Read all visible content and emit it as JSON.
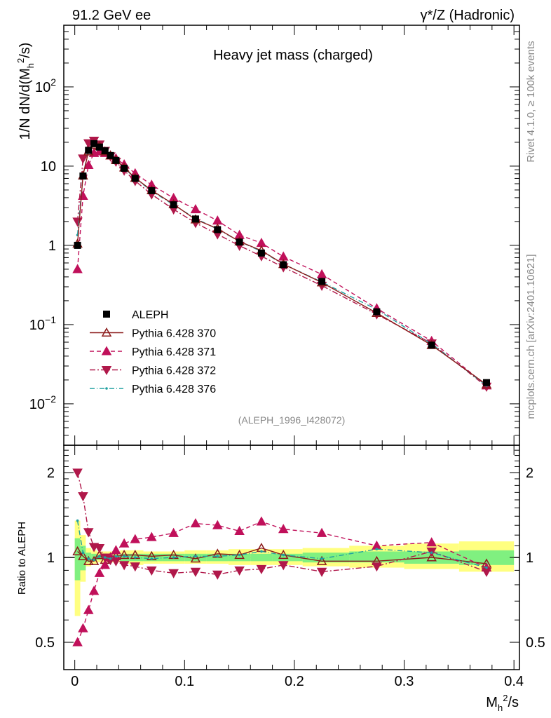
{
  "header": {
    "left": "91.2 GeV ee",
    "right": "γ*/Z (Hadronic)"
  },
  "side_labels": {
    "rivet": "Rivet 4.1.0, ≥ 100k events",
    "mcplots": "mcplots.cern.ch [arXiv:2401.10621]"
  },
  "colors": {
    "aleph": "#000000",
    "p370": "#8b1a1a",
    "p371": "#c0105a",
    "p372": "#b0184a",
    "p376": "#20a0a0",
    "band_outer": "#ffff80",
    "band_inner": "#80f080"
  },
  "chart_data": [
    {
      "type": "line",
      "title": "Heavy jet mass (charged)",
      "watermark": "(ALEPH_1996_I428072)",
      "xlabel": "M_h^2/s",
      "ylabel": "1/N  dN/d(M_h^2/s)",
      "yscale": "log",
      "xlim": [
        -0.01,
        0.405
      ],
      "ylim": [
        0.003,
        600
      ],
      "x_ticks": [
        0,
        0.1,
        0.2,
        0.3,
        0.4
      ],
      "y_ticks": [
        {
          "v": 0.01,
          "base": "10",
          "exp": "−2"
        },
        {
          "v": 0.1,
          "base": "10",
          "exp": "−1"
        },
        {
          "v": 1,
          "base": "1",
          "exp": ""
        },
        {
          "v": 10,
          "base": "10",
          "exp": ""
        },
        {
          "v": 100,
          "base": "10",
          "exp": "2"
        }
      ],
      "x": [
        0.0025,
        0.0075,
        0.0125,
        0.0175,
        0.0225,
        0.0275,
        0.0325,
        0.0375,
        0.045,
        0.055,
        0.07,
        0.09,
        0.11,
        0.13,
        0.15,
        0.17,
        0.19,
        0.225,
        0.275,
        0.325,
        0.375
      ],
      "series": [
        {
          "name": "ALEPH",
          "style": "data",
          "values": [
            1.0,
            7.5,
            15.8,
            19.2,
            17.4,
            15.6,
            13.6,
            11.8,
            9.4,
            7.0,
            4.9,
            3.25,
            2.15,
            1.58,
            1.1,
            0.8,
            0.57,
            0.35,
            0.145,
            0.055,
            0.0185
          ]
        },
        {
          "name": "Pythia 6.428 370",
          "style": "p370",
          "values": [
            1.05,
            7.6,
            15.3,
            18.6,
            17.8,
            15.3,
            13.6,
            11.9,
            9.6,
            7.1,
            4.95,
            3.3,
            2.12,
            1.63,
            1.12,
            0.86,
            0.58,
            0.34,
            0.14,
            0.055,
            0.0175
          ]
        },
        {
          "name": "Pythia 6.428 371",
          "style": "p371",
          "values": [
            0.5,
            4.2,
            10.3,
            14.6,
            15.3,
            14.6,
            13.6,
            12.5,
            10.5,
            8.1,
            5.8,
            3.95,
            2.85,
            2.05,
            1.35,
            1.07,
            0.72,
            0.43,
            0.16,
            0.062,
            0.017
          ]
        },
        {
          "name": "Pythia 6.428 372",
          "style": "p372",
          "values": [
            2.0,
            12.5,
            19.5,
            21.0,
            18.8,
            15.6,
            13.3,
            11.4,
            8.8,
            6.5,
            4.4,
            2.85,
            1.92,
            1.38,
            0.99,
            0.73,
            0.53,
            0.31,
            0.135,
            0.058,
            0.0165
          ]
        },
        {
          "name": "Pythia 6.428 376",
          "style": "p376",
          "values": [
            1.35,
            7.8,
            15.6,
            18.8,
            17.5,
            15.6,
            13.5,
            11.9,
            9.5,
            7.0,
            4.85,
            3.25,
            2.18,
            1.6,
            1.12,
            0.84,
            0.58,
            0.345,
            0.155,
            0.057,
            0.017
          ]
        }
      ]
    },
    {
      "type": "line",
      "ylabel": "Ratio to ALEPH",
      "yscale": "log",
      "ylim": [
        0.4,
        2.5
      ],
      "y_ticks": [
        {
          "v": 0.5,
          "label": "0.5"
        },
        {
          "v": 1,
          "label": "1"
        },
        {
          "v": 2,
          "label": "2"
        }
      ],
      "bands": {
        "outer": [
          [
            0.62,
            1.35
          ],
          [
            0.82,
            1.2
          ],
          [
            0.93,
            1.08
          ],
          [
            0.95,
            1.06
          ],
          [
            0.96,
            1.05
          ],
          [
            0.96,
            1.05
          ],
          [
            0.96,
            1.05
          ],
          [
            0.96,
            1.05
          ],
          [
            0.95,
            1.06
          ],
          [
            0.94,
            1.06
          ],
          [
            0.95,
            1.05
          ],
          [
            0.95,
            1.05
          ],
          [
            0.95,
            1.06
          ],
          [
            0.95,
            1.06
          ],
          [
            0.94,
            1.07
          ],
          [
            0.94,
            1.07
          ],
          [
            0.94,
            1.07
          ],
          [
            0.93,
            1.08
          ],
          [
            0.92,
            1.1
          ],
          [
            0.91,
            1.12
          ],
          [
            0.89,
            1.14
          ]
        ],
        "inner": [
          [
            0.83,
            1.17
          ],
          [
            0.9,
            1.1
          ],
          [
            0.96,
            1.04
          ],
          [
            0.97,
            1.03
          ],
          [
            0.98,
            1.02
          ],
          [
            0.98,
            1.02
          ],
          [
            0.98,
            1.02
          ],
          [
            0.98,
            1.02
          ],
          [
            0.97,
            1.03
          ],
          [
            0.97,
            1.03
          ],
          [
            0.97,
            1.03
          ],
          [
            0.97,
            1.03
          ],
          [
            0.97,
            1.03
          ],
          [
            0.97,
            1.03
          ],
          [
            0.97,
            1.03
          ],
          [
            0.97,
            1.03
          ],
          [
            0.97,
            1.03
          ],
          [
            0.96,
            1.04
          ],
          [
            0.96,
            1.05
          ],
          [
            0.95,
            1.05
          ],
          [
            0.94,
            1.06
          ]
        ]
      },
      "series": [
        {
          "name": "Pythia 6.428 370",
          "style": "p370",
          "values": [
            1.05,
            1.01,
            0.97,
            0.97,
            1.02,
            0.98,
            1.0,
            1.01,
            1.02,
            1.02,
            1.01,
            1.02,
            0.99,
            1.03,
            1.02,
            1.08,
            1.02,
            0.97,
            0.97,
            1.0,
            0.95
          ]
        },
        {
          "name": "Pythia 6.428 371",
          "style": "p371",
          "values": [
            0.5,
            0.56,
            0.65,
            0.76,
            0.88,
            0.94,
            1.0,
            1.06,
            1.12,
            1.16,
            1.18,
            1.22,
            1.32,
            1.3,
            1.24,
            1.34,
            1.26,
            1.22,
            1.1,
            1.13,
            0.92
          ]
        },
        {
          "name": "Pythia 6.428 372",
          "style": "p372",
          "values": [
            2.0,
            1.65,
            1.23,
            1.09,
            1.08,
            1.0,
            0.98,
            0.97,
            0.94,
            0.93,
            0.9,
            0.88,
            0.89,
            0.87,
            0.9,
            0.91,
            0.94,
            0.89,
            0.93,
            1.05,
            0.89
          ]
        },
        {
          "name": "Pythia 6.428 376",
          "style": "p376",
          "values": [
            1.35,
            1.04,
            0.99,
            0.98,
            1.01,
            1.0,
            0.99,
            1.01,
            1.01,
            1.0,
            0.99,
            1.0,
            1.01,
            1.01,
            1.02,
            1.05,
            1.02,
            0.99,
            1.07,
            1.04,
            0.92
          ]
        }
      ]
    }
  ]
}
